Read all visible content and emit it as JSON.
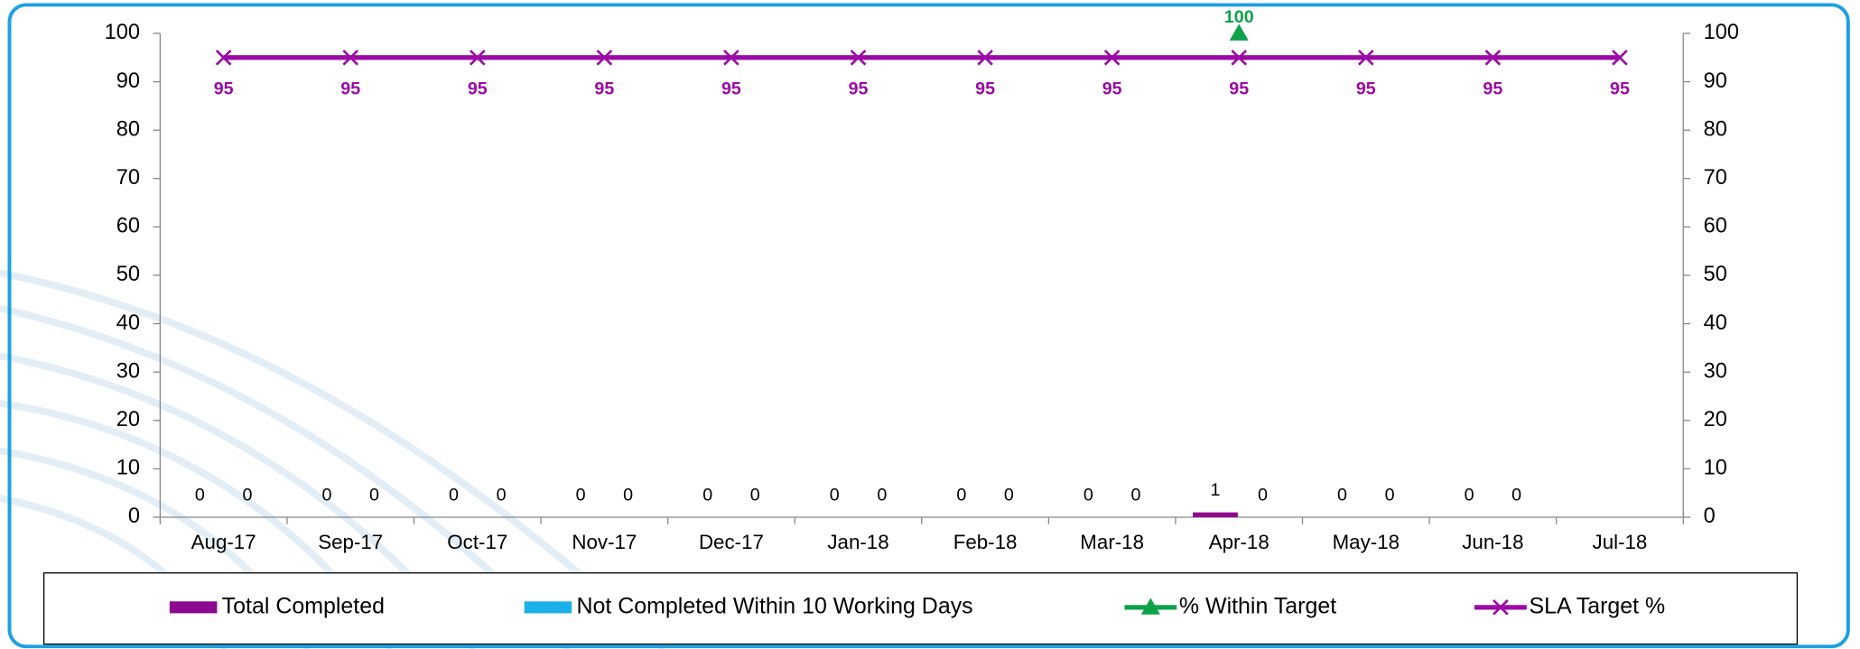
{
  "chart_data": {
    "type": "bar",
    "categories": [
      "Aug-17",
      "Sep-17",
      "Oct-17",
      "Nov-17",
      "Dec-17",
      "Jan-18",
      "Feb-18",
      "Mar-18",
      "Apr-18",
      "May-18",
      "Jun-18",
      "Jul-18"
    ],
    "series": [
      {
        "name": "Total Completed",
        "type": "bar",
        "color": "#8b0a8f",
        "values": [
          0,
          0,
          0,
          0,
          0,
          0,
          0,
          0,
          1,
          0,
          0,
          null
        ]
      },
      {
        "name": "Not Completed Within 10 Working Days",
        "type": "bar",
        "color": "#1ab0e8",
        "values": [
          0,
          0,
          0,
          0,
          0,
          0,
          0,
          0,
          0,
          0,
          0,
          null
        ]
      },
      {
        "name": "% Within Target",
        "type": "line",
        "marker": "triangle",
        "axis": "y2",
        "color": "#0ea14b",
        "values": [
          null,
          null,
          null,
          null,
          null,
          null,
          null,
          null,
          100,
          null,
          null,
          null
        ]
      },
      {
        "name": "SLA Target %",
        "type": "line",
        "marker": "x",
        "axis": "y2",
        "color": "#9b0aa6",
        "values": [
          95,
          95,
          95,
          95,
          95,
          95,
          95,
          95,
          95,
          95,
          95,
          95
        ]
      }
    ],
    "ylim": [
      0,
      100
    ],
    "yticks": [
      0,
      10,
      20,
      30,
      40,
      50,
      60,
      70,
      80,
      90,
      100
    ],
    "y2lim": [
      0,
      100
    ],
    "y2ticks": [
      0,
      10,
      20,
      30,
      40,
      50,
      60,
      70,
      80,
      90,
      100
    ],
    "legend": "bottom"
  }
}
